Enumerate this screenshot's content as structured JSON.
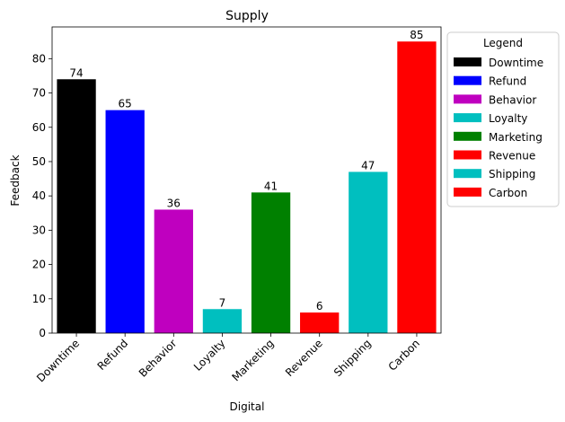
{
  "chart_data": {
    "type": "bar",
    "title": "Supply",
    "xlabel": "Digital",
    "ylabel": "Feedback",
    "categories": [
      "Downtime",
      "Refund",
      "Behavior",
      "Loyalty",
      "Marketing",
      "Revenue",
      "Shipping",
      "Carbon"
    ],
    "values": [
      74,
      65,
      36,
      7,
      41,
      6,
      47,
      85
    ],
    "colors": [
      "#000000",
      "#0000ff",
      "#bf00bf",
      "#00bfbf",
      "#008000",
      "#ff0000",
      "#00bfbf",
      "#ff0000"
    ],
    "ylim": [
      0,
      89.25
    ],
    "yticks": [
      0,
      10,
      20,
      30,
      40,
      50,
      60,
      70,
      80
    ],
    "grid": false,
    "legend": {
      "title": "Legend",
      "placement": "outside-right-top",
      "entries": [
        "Downtime",
        "Refund",
        "Behavior",
        "Loyalty",
        "Marketing",
        "Revenue",
        "Shipping",
        "Carbon"
      ]
    }
  }
}
